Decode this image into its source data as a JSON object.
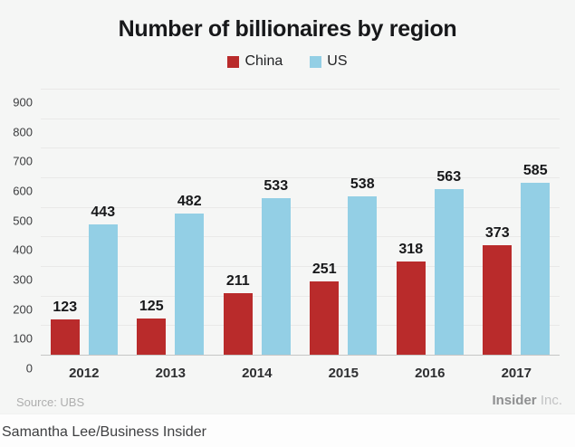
{
  "card": {
    "title": "Number of billionaires by region",
    "source": "Source: UBS",
    "brand_bold": "Insider",
    "brand_light": "Inc."
  },
  "credit": "Samantha Lee/Business Insider",
  "colors": {
    "card_bg": "#f5f6f5",
    "china_red": "#b92b2b",
    "us_blue": "#93cfe5",
    "gridline": "#e9e9e8",
    "baseline": "#c6c6c5"
  },
  "chart_data": {
    "type": "bar",
    "title": "Number of billionaires by region",
    "categories": [
      "2012",
      "2013",
      "2014",
      "2015",
      "2016",
      "2017"
    ],
    "series": [
      {
        "name": "China",
        "color": "#b92b2b",
        "values": [
          123,
          125,
          211,
          251,
          318,
          373
        ]
      },
      {
        "name": "US",
        "color": "#93cfe5",
        "values": [
          443,
          482,
          533,
          538,
          563,
          585
        ]
      }
    ],
    "xlabel": "",
    "ylabel": "",
    "ylim": [
      0,
      900
    ],
    "ytick_step": 100,
    "grid": true,
    "legend_position": "top",
    "value_labels": true
  }
}
